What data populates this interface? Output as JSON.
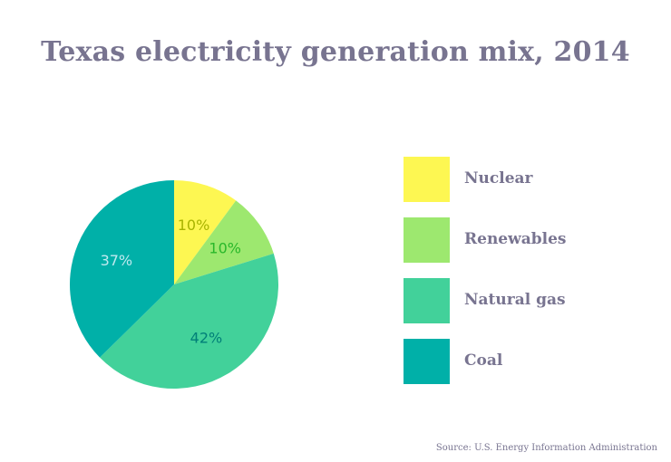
{
  "chart_data": {
    "type": "pie",
    "title": "Texas electricity generation mix, 2014",
    "categories": [
      "Nuclear",
      "Renewables",
      "Natural gas",
      "Coal"
    ],
    "values": [
      10,
      10,
      42,
      37
    ],
    "value_labels": [
      "10%",
      "10%",
      "42%",
      "37%"
    ],
    "colors": [
      "#fdf752",
      "#9de86f",
      "#42d19a",
      "#00b0a8"
    ],
    "label_colors": [
      "#a9b300",
      "#29b82a",
      "#007f78",
      "#bfe9ef"
    ],
    "legend_position": "right",
    "source": "Source: U.S. Energy Information Administration"
  }
}
